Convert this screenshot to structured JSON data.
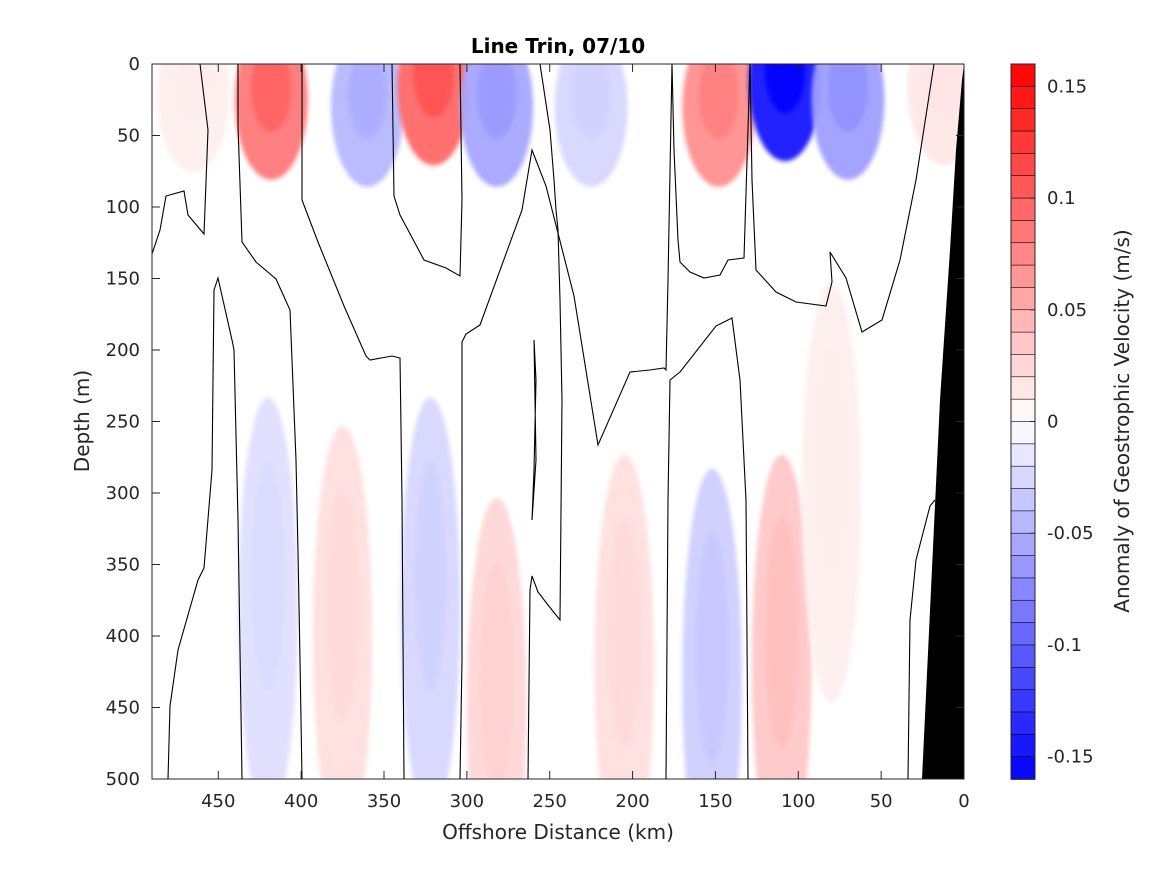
{
  "chart_data": {
    "type": "heatmap",
    "title": "Line Trin, 07/10",
    "xlabel": "Offshore Distance (km)",
    "ylabel": "Depth (m)",
    "colorbar_label": "Anomaly of Geostrophic Velocity (m/s)",
    "xlim": [
      490,
      0
    ],
    "ylim": [
      0,
      500
    ],
    "x_ticks": [
      450,
      400,
      350,
      300,
      250,
      200,
      150,
      100,
      50,
      0
    ],
    "y_ticks": [
      0,
      50,
      100,
      150,
      200,
      250,
      300,
      350,
      400,
      450,
      500
    ],
    "colorbar_ticks": [
      0.15,
      0.1,
      0.05,
      0,
      -0.05,
      -0.1,
      -0.15
    ],
    "colorbar_tick_labels": [
      "0.15",
      "0.1",
      "0.05",
      "0",
      "-0.05",
      "-0.1",
      "-0.15"
    ],
    "clim": [
      -0.16,
      0.16
    ],
    "colormap": {
      "negative": "#0000ff",
      "zero": "#ffffff",
      "positive": "#ff0000"
    },
    "contour_line_color": "#000000",
    "bathymetry_color": "#000000",
    "features": [
      {
        "x": 465,
        "depth": 20,
        "value": 0.01
      },
      {
        "x": 418,
        "depth": 25,
        "value": 0.085
      },
      {
        "x": 360,
        "depth": 30,
        "value": -0.045
      },
      {
        "x": 320,
        "depth": 15,
        "value": 0.095
      },
      {
        "x": 282,
        "depth": 30,
        "value": -0.055
      },
      {
        "x": 225,
        "depth": 30,
        "value": -0.025
      },
      {
        "x": 148,
        "depth": 30,
        "value": 0.07
      },
      {
        "x": 108,
        "depth": 12,
        "value": -0.145
      },
      {
        "x": 70,
        "depth": 25,
        "value": -0.06
      },
      {
        "x": 12,
        "depth": 15,
        "value": 0.015
      },
      {
        "x": 420,
        "depth": 380,
        "value": -0.02
      },
      {
        "x": 375,
        "depth": 400,
        "value": 0.02
      },
      {
        "x": 322,
        "depth": 380,
        "value": -0.025
      },
      {
        "x": 282,
        "depth": 450,
        "value": 0.025
      },
      {
        "x": 205,
        "depth": 420,
        "value": 0.02
      },
      {
        "x": 152,
        "depth": 430,
        "value": -0.03
      },
      {
        "x": 110,
        "depth": 420,
        "value": 0.035
      },
      {
        "x": 80,
        "depth": 300,
        "value": 0.01
      }
    ]
  }
}
